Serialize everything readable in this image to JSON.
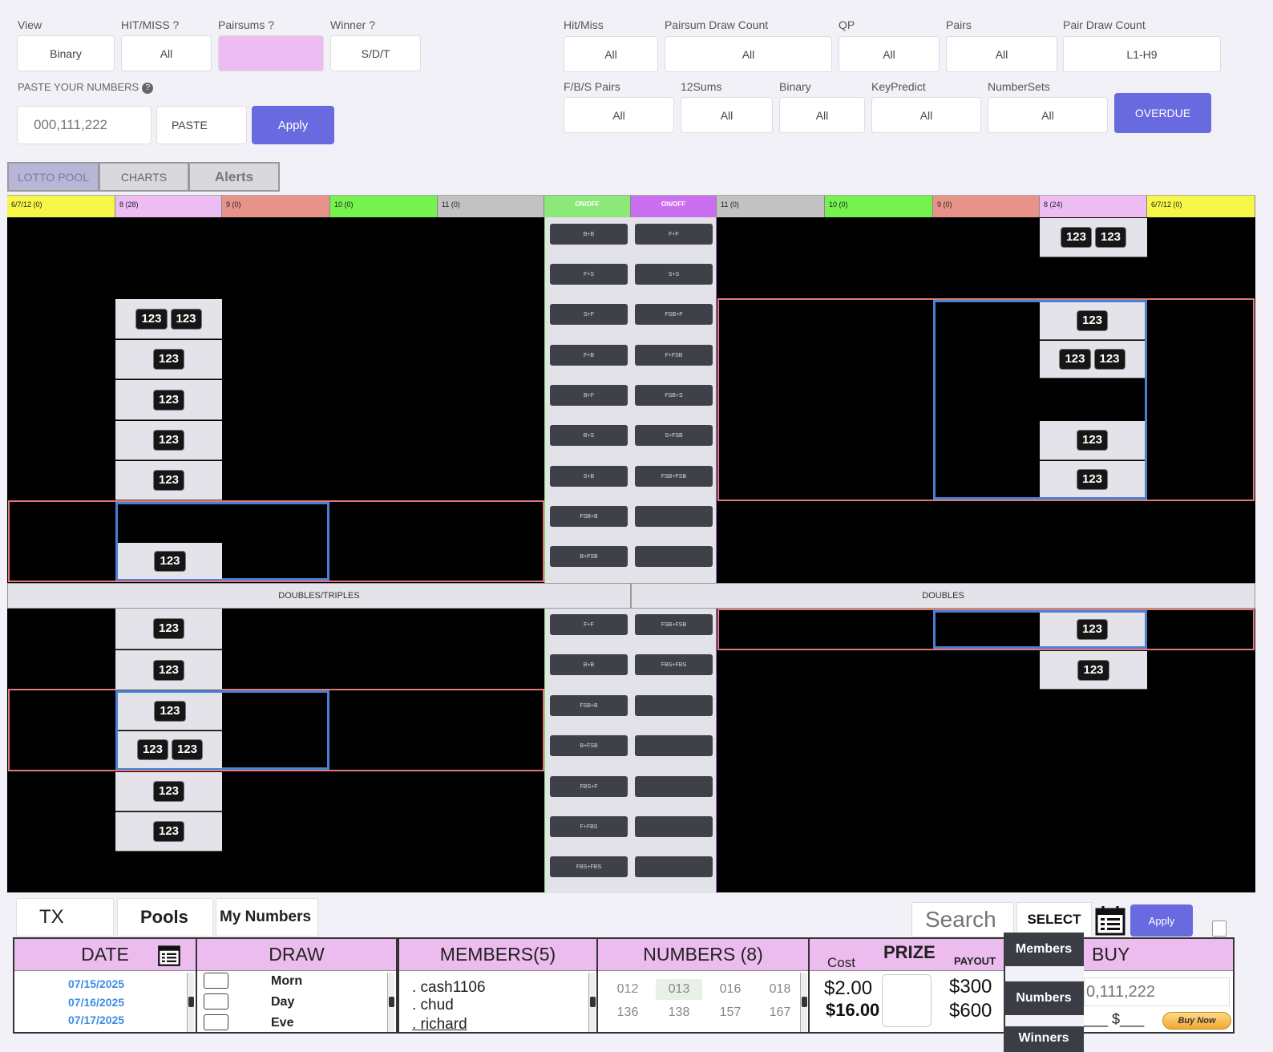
{
  "filters_left": {
    "view_label": "View",
    "view_value": "Binary",
    "hitmiss_label": "HIT/MISS ?",
    "hitmiss_value": "All",
    "pairsums_label": "Pairsums ?",
    "pairsums_value": "",
    "winner_label": "Winner ?",
    "winner_value": "S/D/T",
    "paste_label": "PASTE YOUR NUMBERS",
    "paste_placeholder": "000,111,222",
    "paste_button": "PASTE",
    "apply_button": "Apply"
  },
  "filters_right": {
    "row1": [
      {
        "label": "Hit/Miss",
        "value": "All"
      },
      {
        "label": "Pairsum Draw Count",
        "value": "All"
      },
      {
        "label": "QP",
        "value": "All"
      },
      {
        "label": "Pairs",
        "value": "All"
      },
      {
        "label": "Pair Draw Count",
        "value": "L1-H9"
      }
    ],
    "row2": [
      {
        "label": "F/B/S Pairs",
        "value": "All"
      },
      {
        "label": "12Sums",
        "value": "All"
      },
      {
        "label": "Binary",
        "value": "All"
      },
      {
        "label": "KeyPredict",
        "value": "All"
      },
      {
        "label": "NumberSets",
        "value": "All"
      }
    ],
    "overdue_button": "OVERDUE"
  },
  "tabs": [
    "LOTTO POOL",
    "CHARTS",
    "Alerts"
  ],
  "grid": {
    "left_headers": [
      "6/7/12 (0)",
      "8 (28)",
      "9 (0)",
      "10 (0)",
      "11 (0)"
    ],
    "right_headers": [
      "11 (0)",
      "10 (0)",
      "9 (0)",
      "8 (24)",
      "6/7/12 (0)"
    ],
    "onoff": "ON/OFF",
    "chip": "123",
    "mid_left_top": [
      "B+B",
      "F+S",
      "S+F",
      "F+B",
      "B+F",
      "B+S",
      "S+B",
      "FSB+B",
      "B+FSB"
    ],
    "mid_right_top": [
      "F+F",
      "S+S",
      "FSB+F",
      "F+FSB",
      "FSB+S",
      "S+FSB",
      "FSB+FSB",
      "",
      ""
    ],
    "mid_left_bottom": [
      "F+F",
      "B+B",
      "FSB+B",
      "B+FSB",
      "FBS+F",
      "F+FBS",
      "FBS+FBS"
    ],
    "mid_right_bottom": [
      "FSB+FSB",
      "FBS+FBS",
      "",
      "",
      "",
      "",
      ""
    ],
    "left_section": "DOUBLES/TRIPLES",
    "right_section": "DOUBLES"
  },
  "bottom": {
    "tabs": [
      "TX",
      "Pools",
      "My Numbers"
    ],
    "search_placeholder": "Search",
    "select_label": "SELECT",
    "apply_label": "Apply",
    "date_header": "DATE",
    "dates": [
      "07/15/2025",
      "07/16/2025",
      "07/17/2025"
    ],
    "draw_header": "DRAW",
    "draws": [
      "Morn",
      "Day",
      "Eve"
    ],
    "members_header": "MEMBERS(5)",
    "members": [
      ". cash1106",
      ". chud",
      ". richard"
    ],
    "numbers_header": "NUMBERS  (8)",
    "numbers": [
      "012",
      "013",
      "016",
      "018",
      "136",
      "138",
      "157",
      "167"
    ],
    "cost_label": "Cost",
    "prize_label": "PRIZE",
    "payout_label": "PAYOUT",
    "costs": [
      "$2.00",
      "$16.00"
    ],
    "payouts": [
      "$300",
      "$600"
    ],
    "side_buttons": [
      "Members",
      "Numbers",
      "Winners"
    ],
    "buy_header": "BUY",
    "buy_placeholder": "0,111,222",
    "buy_amount": "___ $___",
    "buy_now": "Buy Now"
  }
}
